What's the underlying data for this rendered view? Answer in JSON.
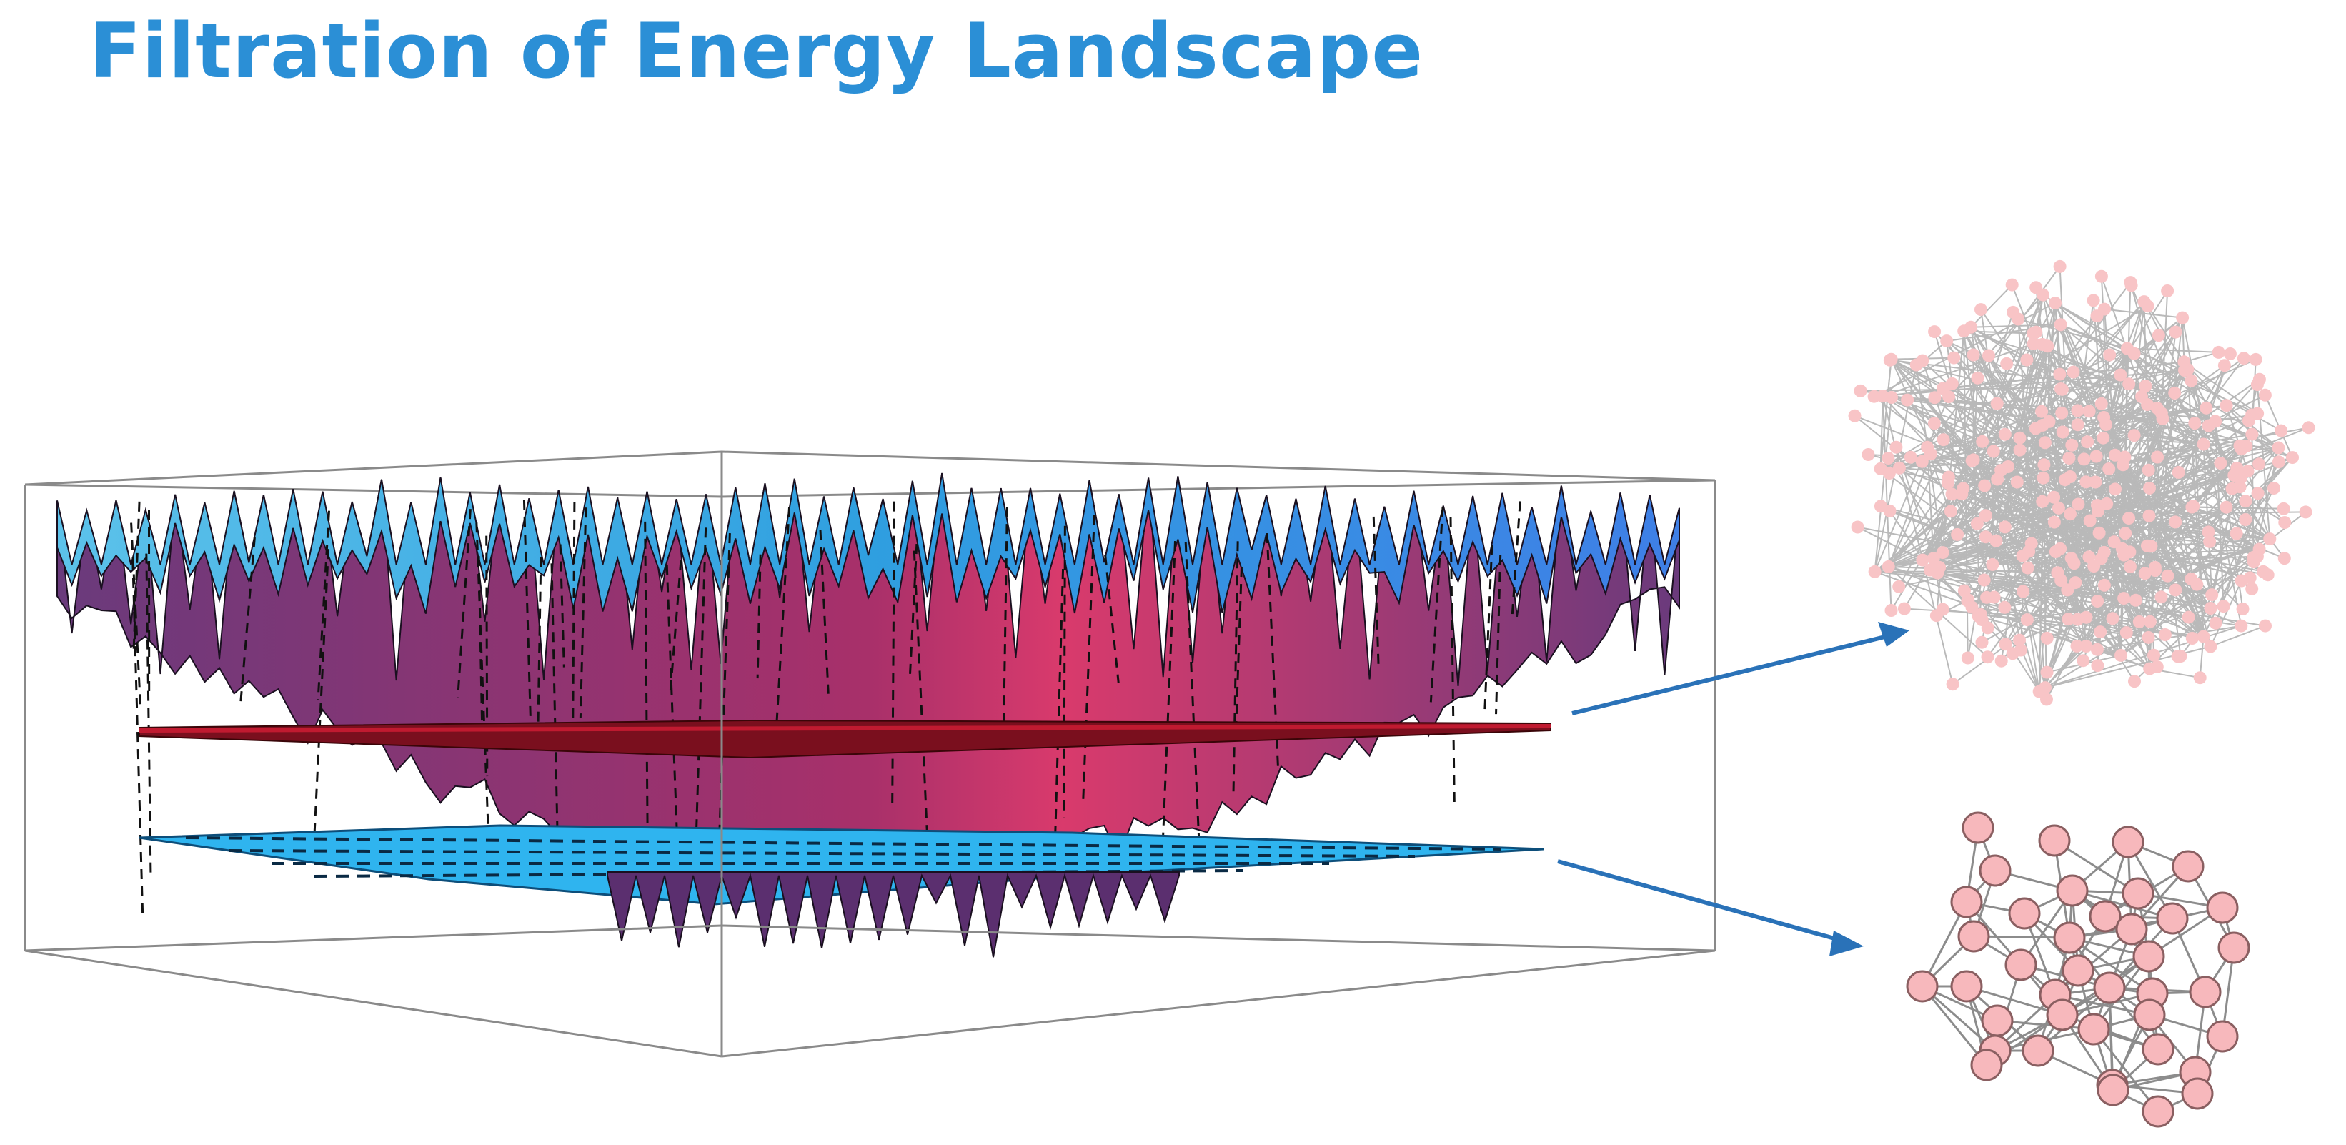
{
  "slide": {
    "title": "Filtration of Energy Landscape"
  },
  "colors": {
    "title": "#2b8fd6",
    "surface_high": "#3aa9e0",
    "surface_mid": "#6b3a7a",
    "surface_low": "#d63a6e",
    "upper_plane": "#8b1020",
    "lower_plane": "#2fb4ef",
    "arrow": "#2a72b8",
    "node_fill": "#f7b8bc",
    "node_stroke": "#9a6a6c",
    "edge": "#8c8c8c"
  },
  "icons": {
    "upper_arrow": "arrow-right-up-icon",
    "lower_arrow": "arrow-right-down-icon"
  }
}
